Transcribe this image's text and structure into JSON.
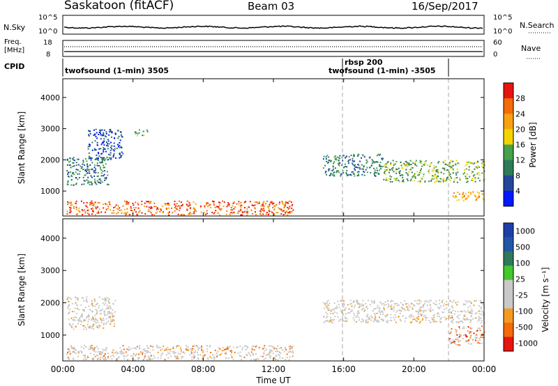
{
  "header": {
    "station": "Saskatoon (fitACF)",
    "beam": "Beam 03",
    "date": "16/Sep/2017"
  },
  "noise_panel": {
    "left_label": "N.Sky",
    "right_label": "N.Search",
    "left_ticks": [
      "10^5",
      "10^0"
    ],
    "right_ticks": [
      "10^5",
      "10^0"
    ]
  },
  "freq_panel": {
    "left_label_1": "Freq.",
    "left_label_2": "[MHz]",
    "right_label": "Nave",
    "left_ticks": [
      "18",
      "8"
    ],
    "right_ticks": [
      "60",
      "0"
    ]
  },
  "cpid_panel": {
    "label": "CPID",
    "entries": [
      {
        "name": "twofsound (1-min) 3505",
        "start": "00:00"
      },
      {
        "name": "rbsp 200",
        "start": "16:00"
      },
      {
        "name": "twofsound (1-min) -3505",
        "start": "16:00"
      }
    ]
  },
  "colors": {
    "power": [
      "#0019ff",
      "#22469a",
      "#2e7a58",
      "#45a14a",
      "#f2d400",
      "#f7a212",
      "#f56b0a",
      "#e8140f"
    ],
    "velocity": [
      "#e8140f",
      "#f56b0a",
      "#f59a20",
      "#c9c9c9",
      "#c9c9c9",
      "#45c72e",
      "#2e7a58",
      "#2456a8",
      "#1e3fa8"
    ],
    "grey_scatter": "#c8c8c8"
  },
  "chart_data": [
    {
      "type": "heatmap",
      "name": "power",
      "ylabel": "Slant Range [km]",
      "ylim": [
        200,
        4600
      ],
      "yticks": [
        "1000",
        "2000",
        "3000",
        "4000"
      ],
      "xlim_hours": [
        0,
        24
      ],
      "xticks": [
        "00:00",
        "04:00",
        "08:00",
        "12:00",
        "16:00",
        "20:00",
        "00:00"
      ],
      "colorbar_label": "Power [dB]",
      "colorbar_ticks": [
        "4",
        "8",
        "12",
        "16",
        "20",
        "24",
        "28"
      ],
      "regions": [
        {
          "t": [
            0.2,
            2.6
          ],
          "r": [
            1200,
            2100
          ],
          "level": 2
        },
        {
          "t": [
            1.4,
            3.4
          ],
          "r": [
            2000,
            3000
          ],
          "level": 1
        },
        {
          "t": [
            4.0,
            4.8
          ],
          "r": [
            2800,
            3000
          ],
          "level": 3
        },
        {
          "t": [
            0.2,
            13.2
          ],
          "r": [
            250,
            700
          ],
          "level": 6
        },
        {
          "t": [
            14.8,
            18.2
          ],
          "r": [
            1500,
            2200
          ],
          "level": 2
        },
        {
          "t": [
            18.2,
            24.0
          ],
          "r": [
            1300,
            2000
          ],
          "level": 3
        },
        {
          "t": [
            22.2,
            24.0
          ],
          "r": [
            700,
            1000
          ],
          "level": 5
        }
      ]
    },
    {
      "type": "heatmap",
      "name": "velocity",
      "ylabel": "Slant Range [km]",
      "ylim": [
        200,
        4600
      ],
      "yticks": [
        "1000",
        "2000",
        "3000",
        "4000"
      ],
      "xlim_hours": [
        0,
        24
      ],
      "xticks": [
        "00:00",
        "04:00",
        "08:00",
        "12:00",
        "16:00",
        "20:00",
        "00:00"
      ],
      "xlabel": "Time UT",
      "colorbar_label": "Velocity [m s⁻¹]",
      "colorbar_ticks": [
        "1000",
        "500",
        "100",
        "25",
        "-25",
        "-100",
        "-500",
        "-1000"
      ],
      "regions": [
        {
          "t": [
            0.2,
            3.0
          ],
          "r": [
            1200,
            2200
          ],
          "level": 3
        },
        {
          "t": [
            0.2,
            13.2
          ],
          "r": [
            250,
            700
          ],
          "level": 2
        },
        {
          "t": [
            14.8,
            24.0
          ],
          "r": [
            1400,
            2100
          ],
          "level": 3
        },
        {
          "t": [
            22.0,
            24.0
          ],
          "r": [
            700,
            1300
          ],
          "level": 1
        }
      ]
    }
  ],
  "time_axis_label": "Time UT"
}
